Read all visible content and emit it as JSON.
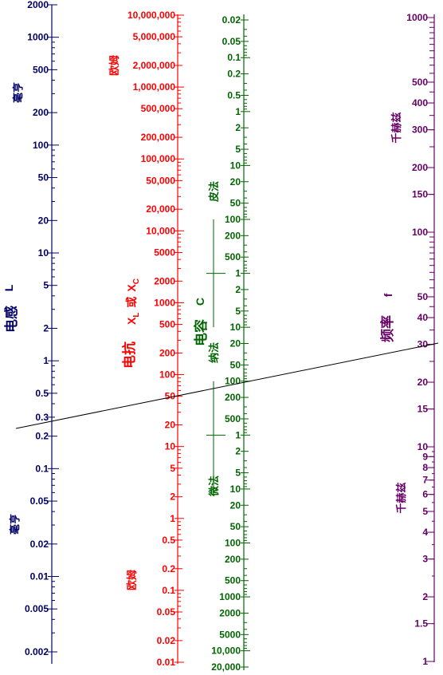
{
  "chart_data": {
    "type": "nomogram",
    "colors": {
      "inductance": "#000066",
      "reactance": "#ff0000",
      "capacitance": "#006600",
      "frequency": "#660066",
      "line": "#000000"
    },
    "scales": {
      "inductance": {
        "name": "电感",
        "symbol": "L",
        "unit_upper": "毫亨",
        "unit_lower": "毫亨",
        "range": [
          0.0014,
          2000
        ],
        "labels": [
          {
            "v": 2000,
            "t": "2000"
          },
          {
            "v": 1000,
            "t": "1000"
          },
          {
            "v": 500,
            "t": "500"
          },
          {
            "v": 200,
            "t": "200"
          },
          {
            "v": 100,
            "t": "100"
          },
          {
            "v": 50,
            "t": "50"
          },
          {
            "v": 20,
            "t": "20"
          },
          {
            "v": 10,
            "t": "10"
          },
          {
            "v": 5,
            "t": "5"
          },
          {
            "v": 2,
            "t": "2"
          },
          {
            "v": 1,
            "t": "1"
          },
          {
            "v": 0.5,
            "t": "0.5"
          },
          {
            "v": 0.3,
            "t": "0.3"
          },
          {
            "v": 0.2,
            "t": "0.2"
          },
          {
            "v": 0.1,
            "t": "0.1"
          },
          {
            "v": 0.05,
            "t": "0.05"
          },
          {
            "v": 0.02,
            "t": "0.02"
          },
          {
            "v": 0.01,
            "t": "0.01"
          },
          {
            "v": 0.005,
            "t": "0.005"
          },
          {
            "v": 0.002,
            "t": "0.002"
          }
        ]
      },
      "reactance": {
        "name": "电抗",
        "symbol": "XL 或 XC",
        "sym_x": "X",
        "sym_l": "L",
        "sym_or": "或",
        "sym_c": "C",
        "unit_upper": "欧姆",
        "unit_lower": "欧姆",
        "range": [
          0.01,
          15000000
        ],
        "labels": [
          {
            "v": 10000000,
            "t": "10,000,000"
          },
          {
            "v": 5000000,
            "t": "5,000,000"
          },
          {
            "v": 2000000,
            "t": "2,000,000"
          },
          {
            "v": 1000000,
            "t": "1,000,000"
          },
          {
            "v": 500000,
            "t": "500,000"
          },
          {
            "v": 200000,
            "t": "200,000"
          },
          {
            "v": 100000,
            "t": "100,000"
          },
          {
            "v": 50000,
            "t": "50,000"
          },
          {
            "v": 20000,
            "t": "20,000"
          },
          {
            "v": 10000,
            "t": "10,000"
          },
          {
            "v": 5000,
            "t": "5000"
          },
          {
            "v": 2000,
            "t": "2000"
          },
          {
            "v": 1000,
            "t": "1000"
          },
          {
            "v": 500,
            "t": "500"
          },
          {
            "v": 200,
            "t": "200"
          },
          {
            "v": 100,
            "t": "100"
          },
          {
            "v": 50,
            "t": "50"
          },
          {
            "v": 20,
            "t": "20"
          },
          {
            "v": 10,
            "t": "10"
          },
          {
            "v": 5,
            "t": "5"
          },
          {
            "v": 2,
            "t": "2"
          },
          {
            "v": 1,
            "t": "1"
          },
          {
            "v": 0.5,
            "t": "0.5"
          },
          {
            "v": 0.2,
            "t": "0.2"
          },
          {
            "v": 0.1,
            "t": "0.1"
          },
          {
            "v": 0.05,
            "t": "0.05"
          },
          {
            "v": 0.02,
            "t": "0.02"
          },
          {
            "v": 0.01,
            "t": "0.01"
          }
        ]
      },
      "capacitance": {
        "name": "电容",
        "symbol": "C",
        "unit_pf": "皮法",
        "unit_nf": "纳法",
        "unit_uf": "微法",
        "labels": [
          {
            "v": 0.02,
            "t": "0.02"
          },
          {
            "v": 0.05,
            "t": "0.05"
          },
          {
            "v": 0.1,
            "t": "0.1"
          },
          {
            "v": 0.2,
            "t": "0.2"
          },
          {
            "v": 0.5,
            "t": "0.5"
          },
          {
            "v": 1,
            "t": "1"
          },
          {
            "v": 2,
            "t": "2"
          },
          {
            "v": 5,
            "t": "5"
          },
          {
            "v": 10,
            "t": "10"
          },
          {
            "v": 20,
            "t": "20"
          },
          {
            "v": 50,
            "t": "50"
          },
          {
            "v": 100,
            "t": "100"
          },
          {
            "v": 200,
            "t": "200"
          },
          {
            "v": 500,
            "t": "500"
          },
          {
            "v": 1000,
            "t": "1"
          },
          {
            "v": 2000,
            "t": "2"
          },
          {
            "v": 5000,
            "t": "5"
          },
          {
            "v": 10000,
            "t": "10"
          },
          {
            "v": 20000,
            "t": "20"
          },
          {
            "v": 50000,
            "t": "50"
          },
          {
            "v": 100000,
            "t": "100"
          },
          {
            "v": 200000,
            "t": "200"
          },
          {
            "v": 500000,
            "t": "500"
          },
          {
            "v": 1000000,
            "t": "1"
          },
          {
            "v": 2000000,
            "t": "2"
          },
          {
            "v": 5000000,
            "t": "5"
          },
          {
            "v": 10000000,
            "t": "10"
          },
          {
            "v": 20000000,
            "t": "20"
          },
          {
            "v": 50000000,
            "t": "50"
          },
          {
            "v": 100000000,
            "t": "100"
          },
          {
            "v": 200000000,
            "t": "200"
          },
          {
            "v": 500000000,
            "t": "500"
          },
          {
            "v": 1000000000,
            "t": "1000"
          },
          {
            "v": 2000000000,
            "t": "2000"
          },
          {
            "v": 5000000000,
            "t": "5000"
          },
          {
            "v": 10000000000,
            "t": "10,000"
          },
          {
            "v": 20000000000,
            "t": "20,000"
          }
        ]
      },
      "frequency": {
        "name": "频率",
        "symbol": "f",
        "unit_upper": "千赫兹",
        "unit_lower": "千赫兹",
        "labels": [
          {
            "v": 1000,
            "t": "1000"
          },
          {
            "v": 500,
            "t": "500"
          },
          {
            "v": 400,
            "t": "400"
          },
          {
            "v": 300,
            "t": "300"
          },
          {
            "v": 200,
            "t": "200"
          },
          {
            "v": 150,
            "t": "150"
          },
          {
            "v": 100,
            "t": "100"
          },
          {
            "v": 50,
            "t": "50"
          },
          {
            "v": 40,
            "t": "40"
          },
          {
            "v": 30,
            "t": "30"
          },
          {
            "v": 20,
            "t": "20"
          },
          {
            "v": 15,
            "t": "15"
          },
          {
            "v": 10,
            "t": "10"
          },
          {
            "v": 9,
            "t": "9"
          },
          {
            "v": 8,
            "t": "8"
          },
          {
            "v": 7,
            "t": "7"
          },
          {
            "v": 6,
            "t": "6"
          },
          {
            "v": 5,
            "t": "5"
          },
          {
            "v": 4,
            "t": "4"
          },
          {
            "v": 3,
            "t": "3"
          },
          {
            "v": 2,
            "t": "2"
          },
          {
            "v": 1.5,
            "t": "1.5"
          },
          {
            "v": 1,
            "t": "1"
          }
        ]
      }
    },
    "example_line": {
      "inductance": 0.23,
      "reactance": 44,
      "capacitance_pf": 90000,
      "frequency": 30
    }
  }
}
